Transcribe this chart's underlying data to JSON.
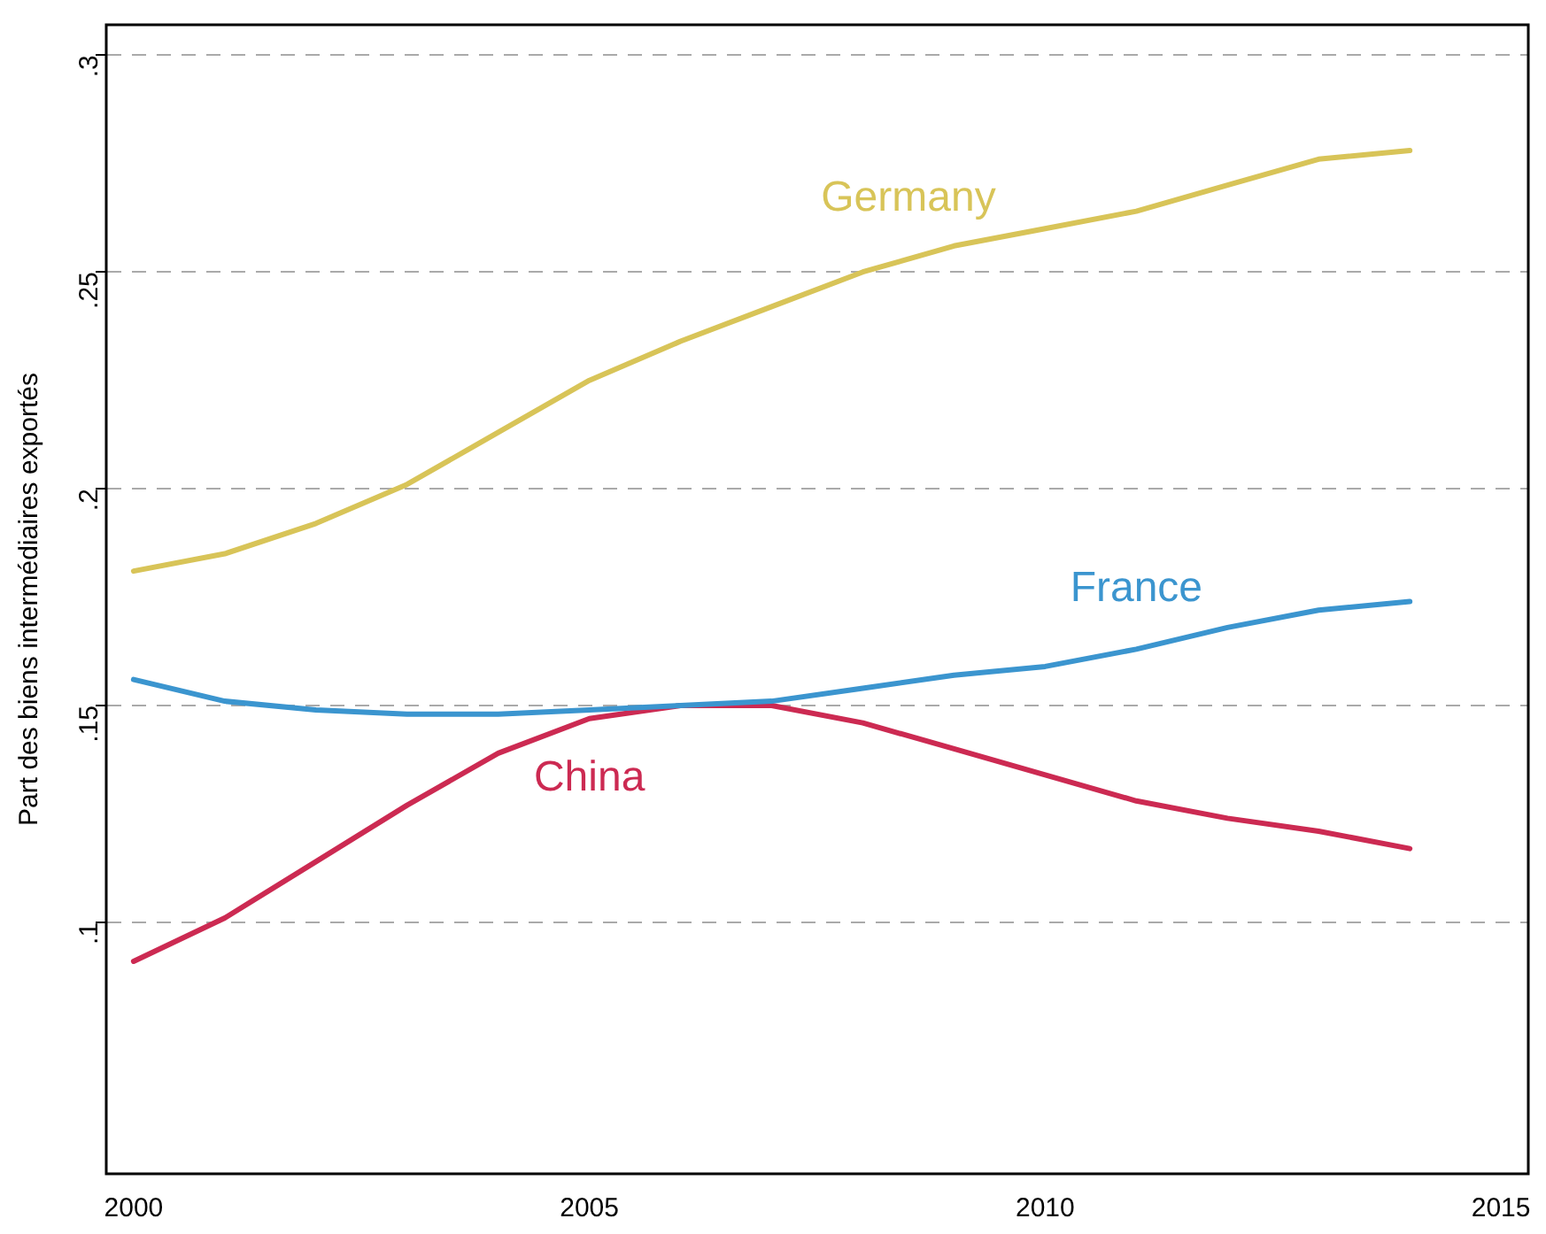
{
  "chart_data": {
    "type": "line",
    "ylabel": "Part des biens intermédiaires exportés",
    "x": [
      2000,
      2001,
      2002,
      2003,
      2004,
      2005,
      2006,
      2007,
      2008,
      2009,
      2010,
      2011,
      2012,
      2013,
      2014
    ],
    "series": [
      {
        "name": "Germany",
        "color": "#d8c458",
        "values": [
          0.181,
          0.185,
          0.192,
          0.201,
          0.213,
          0.225,
          0.234,
          0.242,
          0.25,
          0.256,
          0.26,
          0.264,
          0.27,
          0.276,
          0.278
        ]
      },
      {
        "name": "France",
        "color": "#3b95cf",
        "values": [
          0.156,
          0.151,
          0.149,
          0.148,
          0.148,
          0.149,
          0.15,
          0.151,
          0.154,
          0.157,
          0.159,
          0.163,
          0.168,
          0.172,
          0.174
        ]
      },
      {
        "name": "China",
        "color": "#cc2a52",
        "values": [
          0.091,
          0.101,
          0.114,
          0.127,
          0.139,
          0.147,
          0.15,
          0.15,
          0.146,
          0.14,
          0.134,
          0.128,
          0.124,
          0.121,
          0.117
        ]
      }
    ],
    "xlim": [
      1999.7,
      2015.3
    ],
    "xticks": [
      2000,
      2005,
      2010,
      2015
    ],
    "ylim": [
      0.042,
      0.307
    ],
    "yticks": [
      {
        "value": 0.1,
        "label": ".1"
      },
      {
        "value": 0.15,
        "label": ".15"
      },
      {
        "value": 0.2,
        "label": ".2"
      },
      {
        "value": 0.25,
        "label": ".25"
      },
      {
        "value": 0.3,
        "label": ".3"
      }
    ],
    "grid": "y",
    "legend": false,
    "marker": "none",
    "line_style": "solid"
  }
}
